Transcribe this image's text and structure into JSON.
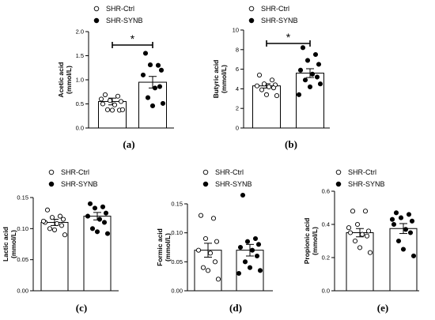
{
  "chart_data": [
    {
      "type": "bar",
      "panel_label": "(a)",
      "ylabel": "Acetic acid\n(mmol/L)",
      "categories": [
        "SHR-Ctrl",
        "SHR-SYNB"
      ],
      "ylim": [
        0,
        2.0
      ],
      "yticks": [
        "0.0",
        "0.5",
        "1.0",
        "1.5",
        "2.0"
      ],
      "ytick_values": [
        0,
        0.5,
        1.0,
        1.5,
        2.0
      ],
      "significance": "*",
      "series": [
        {
          "name": "SHR-Ctrl",
          "mean": 0.55,
          "sem": 0.07,
          "points": [
            0.69,
            0.66,
            0.57,
            0.55,
            0.5,
            0.48,
            0.37,
            0.38,
            0.37,
            0.38,
            0.6
          ]
        },
        {
          "name": "SHR-SYNB",
          "mean": 0.95,
          "sem": 0.12,
          "points": [
            1.55,
            1.3,
            1.31,
            1.2,
            1.1,
            0.83,
            0.86,
            0.63,
            0.46,
            0.51
          ]
        }
      ]
    },
    {
      "type": "bar",
      "panel_label": "(b)",
      "ylabel": "Butyric acid\n(mmol/L)",
      "categories": [
        "SHR-Ctrl",
        "SHR-SYNB"
      ],
      "ylim": [
        0,
        10
      ],
      "yticks": [
        "0",
        "2",
        "4",
        "6",
        "8",
        "10"
      ],
      "ytick_values": [
        0,
        2,
        4,
        6,
        8,
        10
      ],
      "significance": "*",
      "series": [
        {
          "name": "SHR-Ctrl",
          "mean": 4.3,
          "sem": 0.22,
          "points": [
            5.4,
            4.9,
            4.5,
            4.4,
            4.3,
            4.2,
            4.1,
            3.9,
            3.4,
            3.3
          ]
        },
        {
          "name": "SHR-SYNB",
          "mean": 5.6,
          "sem": 0.45,
          "points": [
            8.2,
            7.5,
            6.9,
            6.5,
            5.9,
            5.5,
            5.2,
            4.9,
            4.2,
            4.5,
            3.4
          ]
        }
      ]
    },
    {
      "type": "bar",
      "panel_label": "(c)",
      "ylabel": "Lactic acid\n(mmol/L)",
      "categories": [
        "SHR-Ctrl",
        "SHR-SYNB"
      ],
      "ylim": [
        0,
        0.15
      ],
      "yticks": [
        "0.00",
        "0.05",
        "0.10",
        "0.15"
      ],
      "ytick_values": [
        0,
        0.05,
        0.1,
        0.15
      ],
      "significance": "",
      "series": [
        {
          "name": "SHR-Ctrl",
          "mean": 0.11,
          "sem": 0.005,
          "points": [
            0.13,
            0.12,
            0.118,
            0.115,
            0.11,
            0.108,
            0.105,
            0.1,
            0.098,
            0.09,
            0.112
          ]
        },
        {
          "name": "SHR-SYNB",
          "mean": 0.12,
          "sem": 0.006,
          "points": [
            0.14,
            0.135,
            0.133,
            0.125,
            0.12,
            0.115,
            0.11,
            0.1,
            0.095,
            0.092
          ]
        }
      ]
    },
    {
      "type": "bar",
      "panel_label": "(d)",
      "ylabel": "Formic acid\n(mmol/L)",
      "categories": [
        "SHR-Ctrl",
        "SHR-SYNB"
      ],
      "ylim": [
        0,
        0.15
      ],
      "yticks": [
        "0.00",
        "0.05",
        "0.10",
        "0.15"
      ],
      "ytick_values": [
        0,
        0.05,
        0.1,
        0.15
      ],
      "significance": "",
      "series": [
        {
          "name": "SHR-Ctrl",
          "mean": 0.07,
          "sem": 0.012,
          "points": [
            0.13,
            0.125,
            0.09,
            0.085,
            0.07,
            0.065,
            0.05,
            0.04,
            0.035,
            0.02
          ]
        },
        {
          "name": "SHR-SYNB",
          "mean": 0.07,
          "sem": 0.01,
          "points": [
            0.165,
            0.09,
            0.085,
            0.08,
            0.075,
            0.07,
            0.06,
            0.05,
            0.04,
            0.035,
            0.03
          ]
        }
      ]
    },
    {
      "type": "bar",
      "panel_label": "(e)",
      "ylabel": "Propionic acid\n(mmol/L)",
      "categories": [
        "SHR-Ctrl",
        "SHR-SYNB"
      ],
      "ylim": [
        0,
        0.6
      ],
      "yticks": [
        "0.0",
        "0.2",
        "0.4",
        "0.6"
      ],
      "ytick_values": [
        0,
        0.2,
        0.4,
        0.6
      ],
      "significance": "",
      "series": [
        {
          "name": "SHR-Ctrl",
          "mean": 0.35,
          "sem": 0.025,
          "points": [
            0.48,
            0.48,
            0.4,
            0.36,
            0.35,
            0.34,
            0.33,
            0.3,
            0.26,
            0.23,
            0.38
          ]
        },
        {
          "name": "SHR-SYNB",
          "mean": 0.375,
          "sem": 0.03,
          "points": [
            0.47,
            0.46,
            0.44,
            0.42,
            0.4,
            0.37,
            0.35,
            0.3,
            0.25,
            0.21,
            0.43
          ]
        }
      ]
    }
  ]
}
